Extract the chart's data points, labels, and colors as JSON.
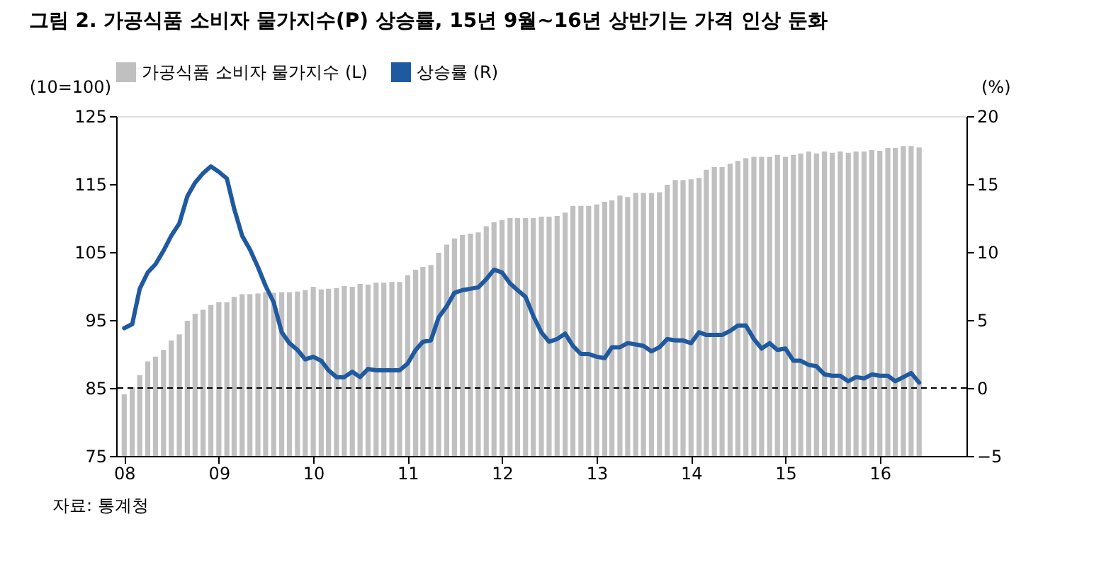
{
  "chart_data": {
    "type": "bar",
    "title": "그림 2. 가공식품 소비자 물가지수(P) 상승률, 15년 9월~16년 상반기는 가격 인상 둔화",
    "ylabel": "(10=100)",
    "y2label": "(%)",
    "annotations": [
      "자료: 통계청"
    ],
    "x": [
      "2008-01",
      "2008-02",
      "2008-03",
      "2008-04",
      "2008-05",
      "2008-06",
      "2008-07",
      "2008-08",
      "2008-09",
      "2008-10",
      "2008-11",
      "2008-12",
      "2009-01",
      "2009-02",
      "2009-03",
      "2009-04",
      "2009-05",
      "2009-06",
      "2009-07",
      "2009-08",
      "2009-09",
      "2009-10",
      "2009-11",
      "2009-12",
      "2010-01",
      "2010-02",
      "2010-03",
      "2010-04",
      "2010-05",
      "2010-06",
      "2010-07",
      "2010-08",
      "2010-09",
      "2010-10",
      "2010-11",
      "2010-12",
      "2011-01",
      "2011-02",
      "2011-03",
      "2011-04",
      "2011-05",
      "2011-06",
      "2011-07",
      "2011-08",
      "2011-09",
      "2011-10",
      "2011-11",
      "2011-12",
      "2012-01",
      "2012-02",
      "2012-03",
      "2012-04",
      "2012-05",
      "2012-06",
      "2012-07",
      "2012-08",
      "2012-09",
      "2012-10",
      "2012-11",
      "2012-12",
      "2013-01",
      "2013-02",
      "2013-03",
      "2013-04",
      "2013-05",
      "2013-06",
      "2013-07",
      "2013-08",
      "2013-09",
      "2013-10",
      "2013-11",
      "2013-12",
      "2014-01",
      "2014-02",
      "2014-03",
      "2014-04",
      "2014-05",
      "2014-06",
      "2014-07",
      "2014-08",
      "2014-09",
      "2014-10",
      "2014-11",
      "2014-12",
      "2015-01",
      "2015-02",
      "2015-03",
      "2015-04",
      "2015-05",
      "2015-06",
      "2015-07",
      "2015-08",
      "2015-09",
      "2015-10",
      "2015-11",
      "2015-12",
      "2016-01",
      "2016-02",
      "2016-03",
      "2016-04",
      "2016-05",
      "2016-06"
    ],
    "series": [
      {
        "name": "가공식품 소비자 물가지수 (L)",
        "color": "#c0c0c0",
        "values": [
          84.1,
          85.1,
          86.9,
          88.9,
          89.6,
          90.6,
          92.0,
          92.9,
          94.9,
          95.9,
          96.5,
          97.2,
          97.6,
          97.6,
          98.4,
          98.8,
          98.8,
          98.9,
          99.1,
          99.0,
          99.1,
          99.1,
          99.2,
          99.4,
          99.9,
          99.5,
          99.6,
          99.7,
          100.0,
          99.9,
          100.3,
          100.2,
          100.5,
          100.5,
          100.6,
          100.6,
          101.6,
          102.4,
          102.8,
          103.1,
          104.9,
          106.1,
          107.0,
          107.5,
          107.7,
          107.9,
          108.8,
          109.4,
          109.7,
          110.0,
          110.0,
          110.0,
          110.0,
          110.2,
          110.2,
          110.3,
          110.8,
          111.8,
          111.8,
          111.8,
          112.0,
          112.4,
          112.6,
          113.3,
          113.1,
          113.7,
          113.7,
          113.7,
          113.8,
          114.9,
          115.6,
          115.6,
          115.7,
          115.9,
          117.1,
          117.5,
          117.5,
          118.0,
          118.4,
          118.8,
          119.0,
          119.0,
          119.0,
          119.3,
          119.0,
          119.3,
          119.5,
          119.8,
          119.5,
          119.8,
          119.6,
          119.8,
          119.6,
          119.8,
          119.8,
          120.0,
          119.9,
          120.3,
          120.3,
          120.6,
          120.6,
          120.4
        ]
      },
      {
        "name": "상승률 (R)",
        "type": "line",
        "axis": "y2",
        "color": "#1f5aa0",
        "values": [
          4.4,
          4.7,
          7.3,
          8.5,
          9.1,
          10.1,
          11.2,
          12.1,
          14.1,
          15.1,
          15.8,
          16.3,
          15.9,
          15.4,
          13.2,
          11.2,
          10.2,
          8.9,
          7.5,
          6.3,
          4.1,
          3.3,
          2.8,
          2.1,
          2.3,
          2.0,
          1.3,
          0.8,
          0.8,
          1.2,
          0.8,
          1.4,
          1.3,
          1.3,
          1.3,
          1.3,
          1.8,
          2.8,
          3.4,
          3.5,
          5.2,
          6.0,
          7.0,
          7.2,
          7.3,
          7.4,
          8.0,
          8.7,
          8.5,
          7.7,
          7.2,
          6.7,
          5.3,
          4.1,
          3.4,
          3.6,
          4.0,
          3.1,
          2.5,
          2.5,
          2.3,
          2.2,
          3.0,
          3.0,
          3.3,
          3.2,
          3.1,
          2.7,
          3.0,
          3.6,
          3.5,
          3.5,
          3.3,
          4.1,
          3.9,
          3.9,
          3.9,
          4.2,
          4.6,
          4.6,
          3.6,
          2.9,
          3.3,
          2.8,
          2.9,
          2.0,
          2.0,
          1.7,
          1.6,
          1.0,
          0.9,
          0.9,
          0.5,
          0.8,
          0.7,
          1.0,
          0.9,
          0.9,
          0.5,
          0.8,
          1.1,
          0.4
        ]
      }
    ],
    "xlim": [
      "2007-12",
      "2016-12"
    ],
    "xticks": [
      {
        "value": "2008-01",
        "label": "08"
      },
      {
        "value": "2009-01",
        "label": "09"
      },
      {
        "value": "2010-01",
        "label": "10"
      },
      {
        "value": "2011-01",
        "label": "11"
      },
      {
        "value": "2012-01",
        "label": "12"
      },
      {
        "value": "2013-01",
        "label": "13"
      },
      {
        "value": "2014-01",
        "label": "14"
      },
      {
        "value": "2015-01",
        "label": "15"
      },
      {
        "value": "2016-01",
        "label": "16"
      }
    ],
    "ylim": [
      75,
      125
    ],
    "yticks": [
      75,
      85,
      95,
      105,
      115,
      125
    ],
    "y2lim": [
      -5,
      20
    ],
    "y2ticks": [
      -5,
      0,
      5,
      10,
      15,
      20
    ],
    "ref_lines": [
      {
        "axis": "y2",
        "value": 0,
        "line_style": "dashed",
        "color": "#000000"
      }
    ],
    "legend": "top",
    "grid": false
  }
}
